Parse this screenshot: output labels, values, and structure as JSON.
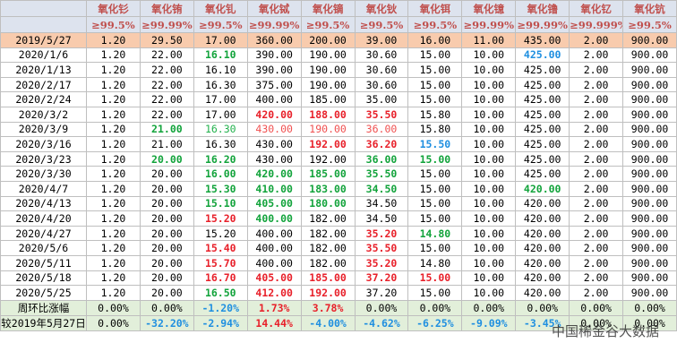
{
  "table": {
    "headers": [
      "氧化钐",
      "氧化铕",
      "氧化钆",
      "氧化铽",
      "氧化镝",
      "氧化钬",
      "氧化铒",
      "氧化镱",
      "氧化镥",
      "氧化钇",
      "氧化钪"
    ],
    "purity": [
      "≥99.5%",
      "≥99.99%",
      "≥99.5%",
      "≥99.99%",
      "≥99.5%",
      "≥99.5%",
      "≥99.5%",
      "≥99.99%",
      "≥99.99%",
      "≥99.999%",
      "≥99.5%"
    ],
    "rows": [
      {
        "label": "2019/5/27",
        "style": "base",
        "values": [
          "1.20",
          "29.50",
          "17.00",
          "360.00",
          "200.00",
          "39.00",
          "16.00",
          "11.00",
          "435.00",
          "2.00",
          "900.00"
        ],
        "colors": [
          "k",
          "k",
          "k",
          "k",
          "k",
          "k",
          "k",
          "k",
          "k",
          "k",
          "k"
        ]
      },
      {
        "label": "2020/1/6",
        "values": [
          "1.20",
          "22.00",
          "16.10",
          "390.00",
          "190.00",
          "30.60",
          "15.00",
          "10.00",
          "425.00",
          "2.00",
          "900.00"
        ],
        "colors": [
          "k",
          "k",
          "g",
          "k",
          "k",
          "k",
          "k",
          "k",
          "b",
          "k",
          "k"
        ]
      },
      {
        "label": "2020/1/13",
        "values": [
          "1.20",
          "22.00",
          "16.10",
          "390.00",
          "190.00",
          "30.60",
          "15.00",
          "10.00",
          "425.00",
          "2.00",
          "900.00"
        ],
        "colors": [
          "k",
          "k",
          "k",
          "k",
          "k",
          "k",
          "k",
          "k",
          "k",
          "k",
          "k"
        ]
      },
      {
        "label": "2020/2/17",
        "values": [
          "1.20",
          "22.00",
          "16.30",
          "375.00",
          "190.00",
          "30.60",
          "15.00",
          "10.00",
          "425.00",
          "2.00",
          "900.00"
        ],
        "colors": [
          "k",
          "k",
          "k",
          "k",
          "k",
          "k",
          "k",
          "k",
          "k",
          "k",
          "k"
        ]
      },
      {
        "label": "2020/2/24",
        "values": [
          "1.20",
          "22.00",
          "17.00",
          "400.00",
          "185.00",
          "35.00",
          "15.00",
          "10.00",
          "425.00",
          "2.00",
          "900.00"
        ],
        "colors": [
          "k",
          "k",
          "k",
          "k",
          "k",
          "k",
          "k",
          "k",
          "k",
          "k",
          "k"
        ]
      },
      {
        "label": "2020/3/2",
        "values": [
          "1.20",
          "22.00",
          "17.00",
          "420.00",
          "188.00",
          "35.50",
          "15.80",
          "10.00",
          "425.00",
          "2.00",
          "900.00"
        ],
        "colors": [
          "k",
          "k",
          "k",
          "r",
          "r",
          "r",
          "k",
          "k",
          "k",
          "k",
          "k"
        ]
      },
      {
        "label": "2020/3/9",
        "values": [
          "1.20",
          "21.00",
          "16.30",
          "430.00",
          "190.00",
          "36.00",
          "15.80",
          "10.00",
          "425.00",
          "2.00",
          "900.00"
        ],
        "colors": [
          "k",
          "g",
          "lg",
          "lr",
          "lr",
          "lr",
          "k",
          "k",
          "k",
          "k",
          "k"
        ]
      },
      {
        "label": "2020/3/16",
        "values": [
          "1.20",
          "21.00",
          "16.30",
          "430.00",
          "192.00",
          "36.20",
          "15.50",
          "10.00",
          "425.00",
          "2.00",
          "900.00"
        ],
        "colors": [
          "k",
          "k",
          "k",
          "k",
          "r",
          "r",
          "b",
          "k",
          "k",
          "k",
          "k"
        ]
      },
      {
        "label": "2020/3/23",
        "values": [
          "1.20",
          "20.00",
          "16.20",
          "430.00",
          "192.00",
          "36.00",
          "15.00",
          "10.00",
          "425.00",
          "2.00",
          "900.00"
        ],
        "colors": [
          "k",
          "g",
          "g",
          "k",
          "k",
          "g",
          "g",
          "k",
          "k",
          "k",
          "k"
        ]
      },
      {
        "label": "2020/3/30",
        "values": [
          "1.20",
          "20.00",
          "16.00",
          "420.00",
          "185.00",
          "35.50",
          "15.00",
          "10.00",
          "425.00",
          "2.00",
          "900.00"
        ],
        "colors": [
          "k",
          "k",
          "g",
          "g",
          "g",
          "g",
          "k",
          "k",
          "k",
          "k",
          "k"
        ]
      },
      {
        "label": "2020/4/7",
        "values": [
          "1.20",
          "20.00",
          "15.30",
          "410.00",
          "183.00",
          "34.50",
          "15.00",
          "10.00",
          "420.00",
          "2.00",
          "900.00"
        ],
        "colors": [
          "k",
          "k",
          "g",
          "g",
          "g",
          "g",
          "k",
          "k",
          "g",
          "k",
          "k"
        ]
      },
      {
        "label": "2020/4/13",
        "values": [
          "1.20",
          "20.00",
          "15.10",
          "405.00",
          "180.00",
          "34.50",
          "15.00",
          "10.00",
          "420.00",
          "2.00",
          "900.00"
        ],
        "colors": [
          "k",
          "k",
          "g",
          "g",
          "g",
          "k",
          "k",
          "k",
          "k",
          "k",
          "k"
        ]
      },
      {
        "label": "2020/4/20",
        "values": [
          "1.20",
          "20.00",
          "15.20",
          "400.00",
          "182.00",
          "34.50",
          "15.00",
          "10.00",
          "420.00",
          "2.00",
          "900.00"
        ],
        "colors": [
          "k",
          "k",
          "r",
          "g",
          "k",
          "k",
          "k",
          "k",
          "k",
          "k",
          "k"
        ]
      },
      {
        "label": "2020/4/27",
        "values": [
          "1.20",
          "20.00",
          "15.20",
          "400.00",
          "182.00",
          "35.20",
          "14.80",
          "10.00",
          "420.00",
          "2.00",
          "900.00"
        ],
        "colors": [
          "k",
          "k",
          "k",
          "k",
          "k",
          "r",
          "g",
          "k",
          "k",
          "k",
          "k"
        ]
      },
      {
        "label": "2020/5/6",
        "values": [
          "1.20",
          "20.00",
          "15.40",
          "400.00",
          "182.00",
          "35.50",
          "15.00",
          "10.00",
          "420.00",
          "2.00",
          "900.00"
        ],
        "colors": [
          "k",
          "k",
          "r",
          "k",
          "k",
          "r",
          "k",
          "k",
          "k",
          "k",
          "k"
        ]
      },
      {
        "label": "2020/5/11",
        "values": [
          "1.20",
          "20.00",
          "15.70",
          "400.00",
          "182.00",
          "35.20",
          "14.80",
          "10.00",
          "420.00",
          "2.00",
          "900.00"
        ],
        "colors": [
          "k",
          "k",
          "r",
          "k",
          "k",
          "r",
          "k",
          "k",
          "k",
          "k",
          "k"
        ]
      },
      {
        "label": "2020/5/18",
        "values": [
          "1.20",
          "20.00",
          "16.70",
          "405.00",
          "185.00",
          "37.20",
          "15.00",
          "10.00",
          "420.00",
          "2.00",
          "900.00"
        ],
        "colors": [
          "k",
          "k",
          "r",
          "r",
          "r",
          "r",
          "r",
          "k",
          "k",
          "k",
          "k"
        ]
      },
      {
        "label": "2020/5/25",
        "values": [
          "1.20",
          "20.00",
          "16.50",
          "412.00",
          "192.00",
          "37.20",
          "15.00",
          "10.00",
          "420.00",
          "2.00",
          "900.00"
        ],
        "colors": [
          "k",
          "k",
          "g",
          "r",
          "r",
          "k",
          "k",
          "k",
          "k",
          "k",
          "k"
        ]
      },
      {
        "label": "周环比涨幅",
        "style": "sum",
        "values": [
          "0.00%",
          "0.00%",
          "-1.20%",
          "1.73%",
          "3.78%",
          "0.00%",
          "0.00%",
          "0.00%",
          "0.00%",
          "0.00%",
          "0.00%"
        ],
        "colors": [
          "k",
          "k",
          "b",
          "r",
          "r",
          "k",
          "k",
          "k",
          "k",
          "k",
          "k"
        ]
      },
      {
        "label": "较2019年5月27日",
        "style": "sum",
        "values": [
          "0.00%",
          "-32.20%",
          "-2.94%",
          "14.44%",
          "-4.00%",
          "-4.62%",
          "-6.25%",
          "-9.09%",
          "-3.45%",
          "0.00%",
          "0.00%"
        ],
        "colors": [
          "k",
          "b",
          "b",
          "r",
          "b",
          "b",
          "b",
          "b",
          "b",
          "k",
          "k"
        ]
      }
    ]
  },
  "watermark": "中国稀金谷大数据"
}
